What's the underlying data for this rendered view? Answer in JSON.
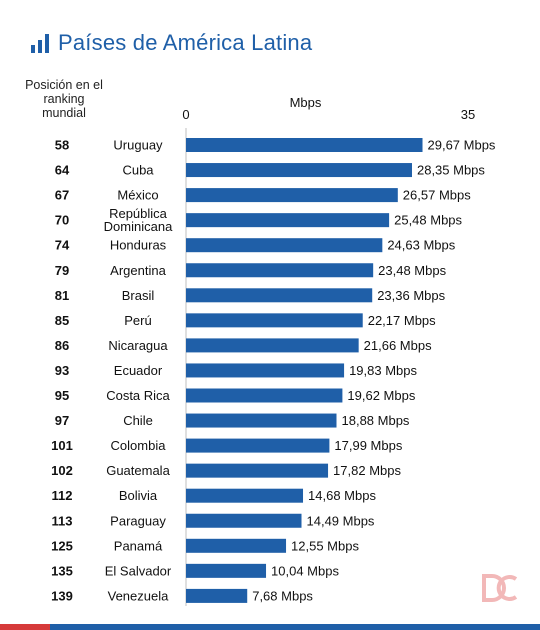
{
  "title": "Países de América Latina",
  "colors": {
    "bar": "#1f5fa8",
    "title": "#1f5fa8",
    "footer_red": "#d63a3a",
    "footer_blue": "#1f5fa8"
  },
  "icons": {
    "title_icon": "bar-chart-icon",
    "watermark": "dc-logo-watermark"
  },
  "chart_data": {
    "type": "bar",
    "orientation": "horizontal",
    "rank_header": "Posición en el ranking mundial",
    "xlabel": "Mbps",
    "xlim": [
      0,
      35
    ],
    "xticks": [
      "0",
      "35"
    ],
    "grid": false,
    "legend": false,
    "unit_suffix": " Mbps",
    "categories": [
      "Uruguay",
      "Cuba",
      "México",
      "República Dominicana",
      "Honduras",
      "Argentina",
      "Brasil",
      "Perú",
      "Nicaragua",
      "Ecuador",
      "Costa Rica",
      "Chile",
      "Colombia",
      "Guatemala",
      "Bolivia",
      "Paraguay",
      "Panamá",
      "El Salvador",
      "Venezuela"
    ],
    "category_lines": [
      [
        "Uruguay"
      ],
      [
        "Cuba"
      ],
      [
        "México"
      ],
      [
        "República",
        "Dominicana"
      ],
      [
        "Honduras"
      ],
      [
        "Argentina"
      ],
      [
        "Brasil"
      ],
      [
        "Perú"
      ],
      [
        "Nicaragua"
      ],
      [
        "Ecuador"
      ],
      [
        "Costa Rica"
      ],
      [
        "Chile"
      ],
      [
        "Colombia"
      ],
      [
        "Guatemala"
      ],
      [
        "Bolivia"
      ],
      [
        "Paraguay"
      ],
      [
        "Panamá"
      ],
      [
        "El Salvador"
      ],
      [
        "Venezuela"
      ]
    ],
    "ranks": [
      "58",
      "64",
      "67",
      "70",
      "74",
      "79",
      "81",
      "85",
      "86",
      "93",
      "95",
      "97",
      "101",
      "102",
      "112",
      "113",
      "125",
      "135",
      "139"
    ],
    "values": [
      29.67,
      28.35,
      26.57,
      25.48,
      24.63,
      23.48,
      23.36,
      22.17,
      21.66,
      19.83,
      19.62,
      18.88,
      17.99,
      17.82,
      14.68,
      14.49,
      12.55,
      10.04,
      7.68
    ],
    "value_labels": [
      "29,67 Mbps",
      "28,35 Mbps",
      "26,57 Mbps",
      "25,48 Mbps",
      "24,63 Mbps",
      "23,48 Mbps",
      "23,36 Mbps",
      "22,17 Mbps",
      "21,66 Mbps",
      "19,83 Mbps",
      "19,62 Mbps",
      "18,88 Mbps",
      "17,99 Mbps",
      "17,82 Mbps",
      "14,68 Mbps",
      "14,49 Mbps",
      "12,55 Mbps",
      "10,04 Mbps",
      "7,68 Mbps"
    ]
  }
}
